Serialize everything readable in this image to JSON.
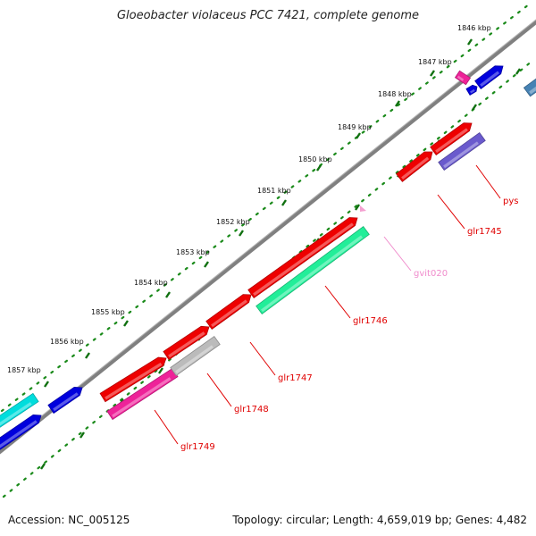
{
  "title": "Gloeobacter violaceus PCC 7421, complete genome",
  "footer": {
    "accession": "Accession: NC_005125",
    "summary": "Topology: circular; Length: 4,659,019 bp; Genes: 4,482"
  },
  "ticks": [
    {
      "label": "1846 kbp"
    },
    {
      "label": "1847 kbp"
    },
    {
      "label": "1848 kbp"
    },
    {
      "label": "1849 kbp"
    },
    {
      "label": "1850 kbp"
    },
    {
      "label": "1851 kbp"
    },
    {
      "label": "1852 kbp"
    },
    {
      "label": "1853 kbp"
    },
    {
      "label": "1854 kbp"
    },
    {
      "label": "1855 kbp"
    },
    {
      "label": "1856 kbp"
    },
    {
      "label": "1857 kbp"
    }
  ],
  "gene_labels": [
    {
      "text": "pys",
      "color": "#e00000"
    },
    {
      "text": "glr1745",
      "color": "#e00000"
    },
    {
      "text": "gvit020",
      "color": "#f08ccc"
    },
    {
      "text": "glr1746",
      "color": "#e00000"
    },
    {
      "text": "glr1747",
      "color": "#e00000"
    },
    {
      "text": "glr1748",
      "color": "#e00000"
    },
    {
      "text": "glr1749",
      "color": "#e00000"
    }
  ],
  "colors": {
    "backbone": "#808080",
    "tick_dots": "#1a8a1a",
    "cds_red": "#ee0000",
    "cds_blue": "#0000dd",
    "cds_cyan": "#00dddd",
    "cds_magenta": "#ee2299",
    "cds_grey": "#bbbbbb",
    "cds_green": "#22ee99",
    "cds_purple": "#6a5acd",
    "cds_steelblue": "#4682b4"
  }
}
